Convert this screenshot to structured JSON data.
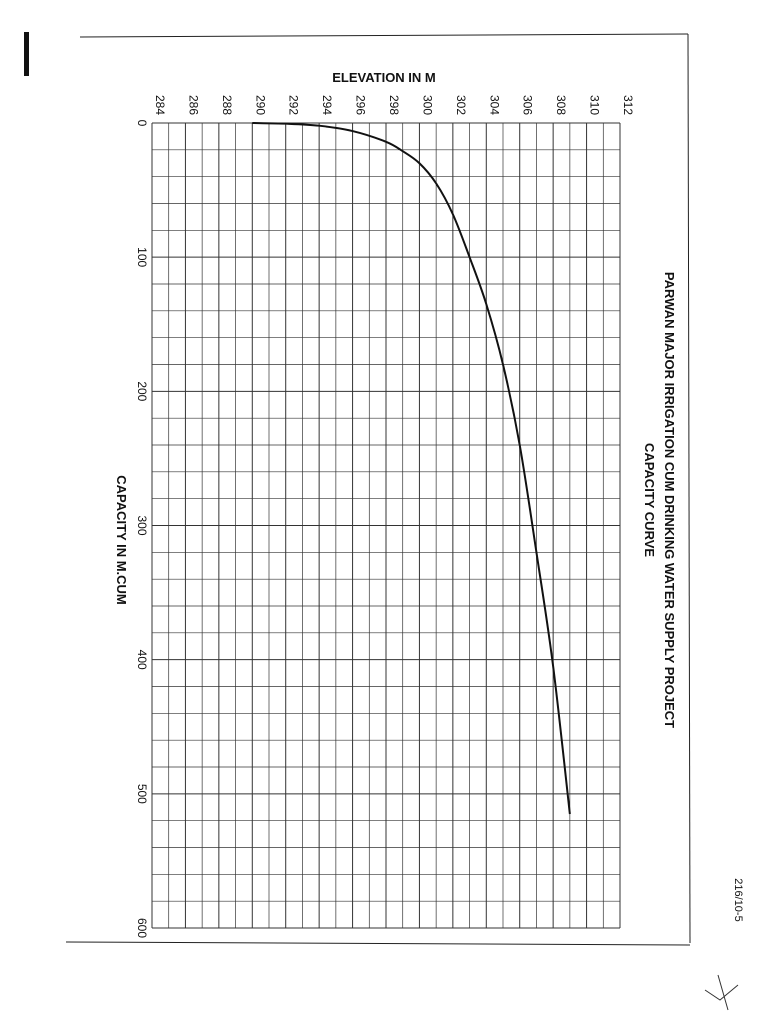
{
  "chart_data": {
    "type": "line",
    "title": "PARWAN MAJOR IRRIGATION CUM DRINKING WATER SUPPLY PROJECT",
    "subtitle": "CAPACITY CURVE",
    "xlabel": "ELEVATION IN M",
    "ylabel": "CAPACITY IN M.CUM",
    "xlim": [
      284,
      312
    ],
    "ylim": [
      0,
      600
    ],
    "x_ticks": [
      "284",
      "286",
      "288",
      "290",
      "292",
      "294",
      "296",
      "298",
      "300",
      "302",
      "304",
      "306",
      "308",
      "310",
      "312"
    ],
    "y_ticks": [
      "0",
      "100",
      "200",
      "300",
      "400",
      "500",
      "600"
    ],
    "grid": true,
    "series": [
      {
        "x": [
          290,
          292,
          294,
          296,
          298,
          299,
          300,
          301,
          302,
          303,
          304,
          305,
          306,
          307,
          308,
          309
        ],
        "y": [
          0,
          0.5,
          2,
          6,
          14,
          21,
          30,
          45,
          68,
          100,
          135,
          180,
          240,
          320,
          405,
          515
        ]
      }
    ]
  },
  "colors": {
    "ink": "#111111",
    "grid": "#333333",
    "paper": "#ffffff"
  },
  "annotations": {
    "margin_note": "216/10-5"
  }
}
